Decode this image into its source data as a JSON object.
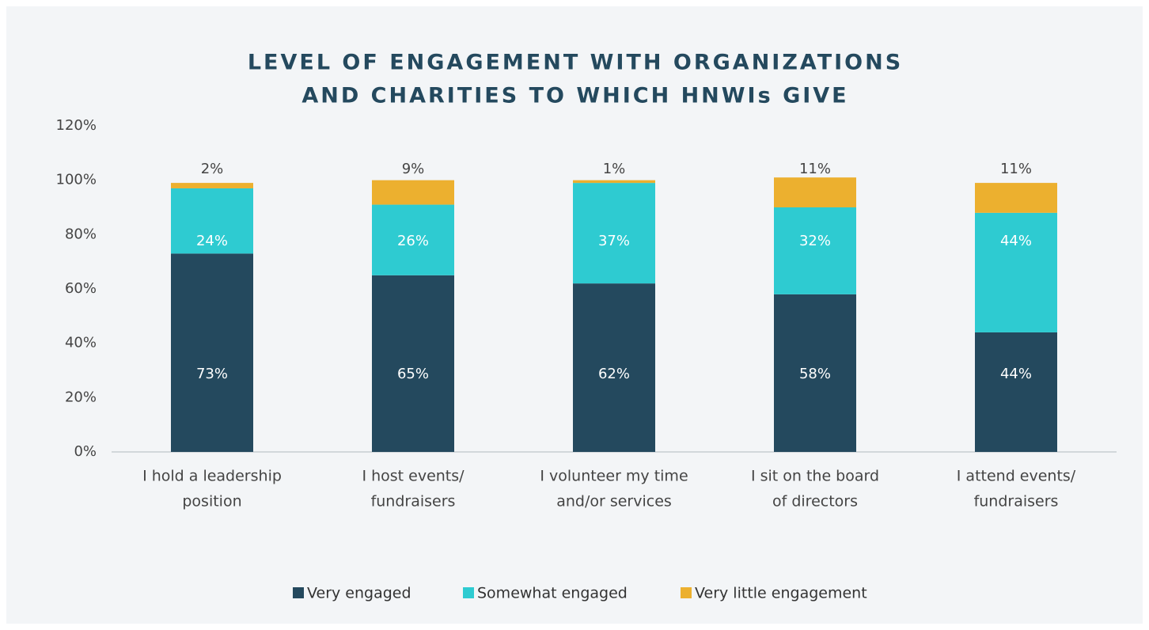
{
  "chart_data": {
    "type": "stacked_bar",
    "title": [
      "LEVEL OF ENGAGEMENT WITH ORGANIZATIONS",
      "AND CHARITIES TO WHICH HNWIs GIVE"
    ],
    "categories": [
      [
        "I hold a leadership",
        "position"
      ],
      [
        "I host events/",
        "fundraisers"
      ],
      [
        "I volunteer my time",
        "and/or services"
      ],
      [
        "I sit on the board",
        "of directors"
      ],
      [
        "I attend events/",
        "fundraisers"
      ]
    ],
    "series": [
      {
        "name": "Very engaged",
        "color": "#24495e",
        "values": [
          73,
          65,
          62,
          58,
          44
        ],
        "value_labels": [
          "73%",
          "65%",
          "62%",
          "58%",
          "44%"
        ]
      },
      {
        "name": "Somewhat engaged",
        "color": "#2ecbd1",
        "values": [
          24,
          26,
          37,
          32,
          44
        ],
        "value_labels": [
          "24%",
          "26%",
          "37%",
          "32%",
          "44%"
        ]
      },
      {
        "name": "Very little engagement",
        "color": "#ecb02f",
        "values": [
          2,
          9,
          1,
          11,
          11
        ],
        "value_labels": [
          "2%",
          "9%",
          "1%",
          "11%",
          "11%"
        ]
      }
    ],
    "ylim": [
      0,
      120
    ],
    "yticks": [
      {
        "value": 0,
        "label": "0%"
      },
      {
        "value": 20,
        "label": "20%"
      },
      {
        "value": 40,
        "label": "40%"
      },
      {
        "value": 60,
        "label": "60%"
      },
      {
        "value": 80,
        "label": "80%"
      },
      {
        "value": 100,
        "label": "100%"
      },
      {
        "value": 120,
        "label": "120%"
      }
    ],
    "grid": false,
    "legend": "bottom"
  }
}
